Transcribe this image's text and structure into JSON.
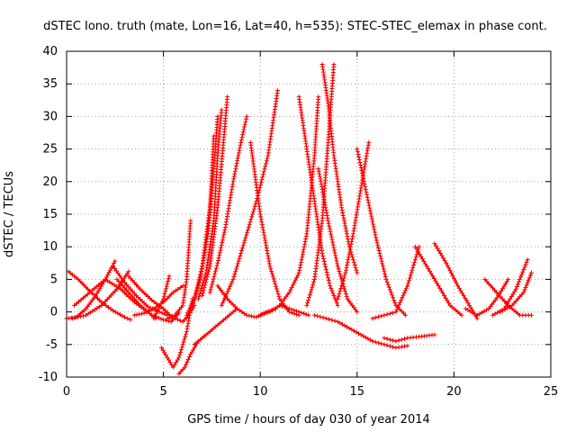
{
  "chart_data": {
    "type": "scatter",
    "title": "dSTEC Iono. truth (mate, Lon=16, Lat=40, h=535): STEC-STEC_elemax in phase cont.",
    "xlabel": "GPS time / hours of day 030 of year 2014",
    "ylabel": "dSTEC  / TECUs",
    "xlim": [
      0,
      25
    ],
    "ylim": [
      -10,
      40
    ],
    "xticks": [
      0,
      5,
      10,
      15,
      20,
      25
    ],
    "yticks": [
      -10,
      -5,
      0,
      5,
      10,
      15,
      20,
      25,
      30,
      35,
      40
    ],
    "grid": true,
    "marker": "+",
    "color": "#ff0000",
    "series": [
      {
        "x": [
          0.0,
          0.5,
          1.0,
          1.5,
          2.0,
          2.5
        ],
        "y": [
          -1.0,
          -0.8,
          0.5,
          2.5,
          5.0,
          7.8
        ]
      },
      {
        "x": [
          0.1,
          0.6,
          1.2,
          1.8,
          2.4,
          3.0,
          3.3
        ],
        "y": [
          6.2,
          5.0,
          3.2,
          1.5,
          0.2,
          -0.8,
          -1.2
        ]
      },
      {
        "x": [
          0.3,
          1.0,
          1.8,
          2.6,
          3.2
        ],
        "y": [
          -1.0,
          -0.5,
          1.0,
          3.5,
          6.2
        ]
      },
      {
        "x": [
          0.4,
          1.2,
          2.0,
          2.8,
          3.5,
          4.2,
          4.6
        ],
        "y": [
          1.0,
          3.0,
          5.0,
          3.5,
          1.5,
          0.0,
          -1.0
        ]
      },
      {
        "x": [
          2.4,
          3.0,
          3.6,
          4.2,
          4.8,
          5.2
        ],
        "y": [
          7.0,
          4.5,
          2.5,
          0.8,
          0.0,
          -0.5
        ]
      },
      {
        "x": [
          2.6,
          3.2,
          3.8,
          4.4,
          5.0,
          5.4,
          5.8
        ],
        "y": [
          5.0,
          3.0,
          1.0,
          -0.5,
          -1.2,
          -1.5,
          -0.2
        ]
      },
      {
        "x": [
          3.2,
          3.8,
          4.4,
          5.0,
          5.5
        ],
        "y": [
          5.5,
          3.5,
          1.8,
          0.5,
          -1.0
        ]
      },
      {
        "x": [
          3.5,
          4.0,
          4.5,
          5.0,
          5.5,
          6.0
        ],
        "y": [
          -0.5,
          -0.2,
          0.5,
          1.5,
          3.0,
          4.0
        ]
      },
      {
        "x": [
          4.5,
          5.0,
          5.3
        ],
        "y": [
          -1.0,
          2.0,
          5.5
        ]
      },
      {
        "x": [
          4.9,
          5.2,
          5.5,
          5.8,
          6.2,
          6.5
        ],
        "y": [
          -5.5,
          -7.0,
          -8.5,
          -7.0,
          -3.0,
          2.0
        ]
      },
      {
        "x": [
          5.2,
          5.6,
          6.0,
          6.2,
          6.4
        ],
        "y": [
          -1.0,
          -0.5,
          1.0,
          5.0,
          14.0
        ]
      },
      {
        "x": [
          5.6,
          6.0,
          6.3,
          6.6
        ],
        "y": [
          -1.0,
          -1.5,
          -0.5,
          1.0
        ]
      },
      {
        "x": [
          5.8,
          6.1,
          6.4,
          6.8,
          7.2
        ],
        "y": [
          -9.5,
          -8.5,
          -6.5,
          -4.5,
          -3.5
        ]
      },
      {
        "x": [
          6.2,
          6.6,
          7.0,
          7.4,
          7.6
        ],
        "y": [
          -0.5,
          2.0,
          7.0,
          16.0,
          27.0
        ]
      },
      {
        "x": [
          6.5,
          6.9,
          7.3,
          7.6,
          7.8
        ],
        "y": [
          1.0,
          5.0,
          12.0,
          22.0,
          30.0
        ]
      },
      {
        "x": [
          6.8,
          7.2,
          7.6,
          7.8,
          8.0
        ],
        "y": [
          2.0,
          6.0,
          14.0,
          24.0,
          31.0
        ]
      },
      {
        "x": [
          7.0,
          7.4,
          7.8,
          8.1,
          8.3
        ],
        "y": [
          2.5,
          7.0,
          16.0,
          26.0,
          33.0
        ]
      },
      {
        "x": [
          7.4,
          7.8,
          8.2,
          8.6,
          9.0,
          9.3
        ],
        "y": [
          3.0,
          7.5,
          13.0,
          20.0,
          26.0,
          30.0
        ]
      },
      {
        "x": [
          6.6,
          7.2,
          7.8,
          8.4,
          8.8
        ],
        "y": [
          -5.0,
          -3.5,
          -2.0,
          -0.5,
          0.5
        ]
      },
      {
        "x": [
          7.8,
          8.3,
          8.8,
          9.3,
          9.8,
          10.3,
          10.8
        ],
        "y": [
          4.0,
          2.0,
          0.5,
          -0.5,
          -0.8,
          0.0,
          0.5
        ]
      },
      {
        "x": [
          8.0,
          8.6,
          9.2,
          9.8,
          10.4,
          10.9
        ],
        "y": [
          1.0,
          5.0,
          11.0,
          17.0,
          24.0,
          34.0
        ]
      },
      {
        "x": [
          9.5,
          10.0,
          10.5,
          11.0,
          11.5,
          12.0
        ],
        "y": [
          26.0,
          15.0,
          7.0,
          2.0,
          0.0,
          -0.5
        ]
      },
      {
        "x": [
          10.0,
          10.5,
          11.0,
          11.5,
          12.0,
          12.5
        ],
        "y": [
          -0.5,
          0.0,
          1.0,
          0.5,
          0.0,
          -0.5
        ]
      },
      {
        "x": [
          11.0,
          11.5,
          12.0,
          12.4,
          12.8,
          13.0
        ],
        "y": [
          1.0,
          3.0,
          6.0,
          12.0,
          24.0,
          33.0
        ]
      },
      {
        "x": [
          12.0,
          12.4,
          12.8,
          13.2,
          13.6,
          14.0
        ],
        "y": [
          33.0,
          25.0,
          17.0,
          9.0,
          4.0,
          1.0
        ]
      },
      {
        "x": [
          12.4,
          12.8,
          13.2,
          13.5,
          13.8
        ],
        "y": [
          1.0,
          5.0,
          14.0,
          26.0,
          38.0
        ]
      },
      {
        "x": [
          13.2,
          13.5,
          13.8,
          14.2,
          14.6,
          15.0
        ],
        "y": [
          38.0,
          32.0,
          24.0,
          16.0,
          10.0,
          6.0
        ]
      },
      {
        "x": [
          13.0,
          13.5,
          14.0,
          14.5,
          15.0
        ],
        "y": [
          22.0,
          14.0,
          7.0,
          2.0,
          0.0
        ]
      },
      {
        "x": [
          12.8,
          13.4,
          14.0,
          14.6,
          15.2,
          15.8,
          16.4,
          17.0,
          17.6
        ],
        "y": [
          -0.5,
          -1.0,
          -1.5,
          -2.5,
          -3.5,
          -4.5,
          -5.0,
          -5.5,
          -5.2
        ]
      },
      {
        "x": [
          14.0,
          14.4,
          14.8,
          15.2,
          15.6
        ],
        "y": [
          2.0,
          6.0,
          12.0,
          19.0,
          26.0
        ]
      },
      {
        "x": [
          15.0,
          15.5,
          16.0,
          16.5,
          17.0,
          17.5
        ],
        "y": [
          25.0,
          18.0,
          11.0,
          5.0,
          1.0,
          -0.5
        ]
      },
      {
        "x": [
          15.8,
          16.4,
          17.0,
          17.6,
          18.2
        ],
        "y": [
          -1.0,
          -0.5,
          0.0,
          4.0,
          10.0
        ]
      },
      {
        "x": [
          16.4,
          17.0,
          17.6,
          18.2,
          19.0
        ],
        "y": [
          -4.0,
          -4.5,
          -4.0,
          -3.8,
          -3.5
        ]
      },
      {
        "x": [
          18.0,
          18.6,
          19.2,
          19.8,
          20.4
        ],
        "y": [
          10.0,
          7.0,
          4.0,
          1.0,
          -0.5
        ]
      },
      {
        "x": [
          19.0,
          19.6,
          20.2,
          20.8,
          21.2
        ],
        "y": [
          10.5,
          7.5,
          4.0,
          1.0,
          -1.0
        ]
      },
      {
        "x": [
          20.6,
          21.2,
          21.8,
          22.3,
          22.8
        ],
        "y": [
          0.5,
          -0.5,
          0.5,
          2.5,
          5.0
        ]
      },
      {
        "x": [
          21.6,
          22.2,
          22.8,
          23.4,
          24.0
        ],
        "y": [
          5.0,
          3.0,
          1.0,
          -0.5,
          -0.5
        ]
      },
      {
        "x": [
          22.0,
          22.6,
          23.2,
          23.8
        ],
        "y": [
          -0.5,
          0.5,
          3.5,
          8.0
        ]
      },
      {
        "x": [
          22.4,
          23.0,
          23.6,
          24.0
        ],
        "y": [
          0.0,
          1.0,
          3.0,
          6.0
        ]
      }
    ]
  }
}
